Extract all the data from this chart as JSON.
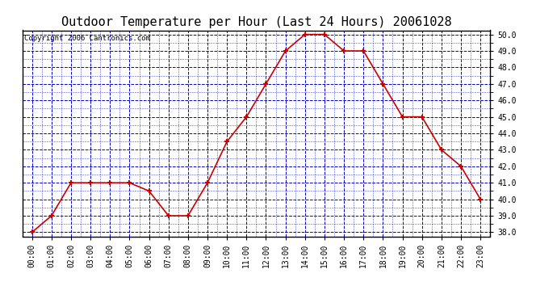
{
  "title": "Outdoor Temperature per Hour (Last 24 Hours) 20061028",
  "copyright_text": "Copyright 2006 Cantronics.com",
  "hours": [
    "00:00",
    "01:00",
    "02:00",
    "03:00",
    "04:00",
    "05:00",
    "06:00",
    "07:00",
    "08:00",
    "09:00",
    "10:00",
    "11:00",
    "12:00",
    "13:00",
    "14:00",
    "15:00",
    "16:00",
    "17:00",
    "18:00",
    "19:00",
    "20:00",
    "21:00",
    "22:00",
    "23:00"
  ],
  "temperatures": [
    38.0,
    39.0,
    41.0,
    41.0,
    41.0,
    41.0,
    40.5,
    39.0,
    39.0,
    41.0,
    43.5,
    45.0,
    47.0,
    49.0,
    50.0,
    50.0,
    49.0,
    49.0,
    47.0,
    45.0,
    45.0,
    43.0,
    42.0,
    40.0
  ],
  "line_color": "#cc0000",
  "marker": "+",
  "marker_color": "#cc0000",
  "bg_color": "#ffffff",
  "plot_bg_color": "#ffffff",
  "grid_color": "#0000cc",
  "grid_linestyle": "--",
  "ylim_min": 37.75,
  "ylim_max": 50.25,
  "ytick_min": 38.0,
  "ytick_max": 50.0,
  "ytick_step": 1.0,
  "title_fontsize": 11,
  "copyright_fontsize": 6.5,
  "tick_fontsize": 7,
  "border_color": "#000000"
}
